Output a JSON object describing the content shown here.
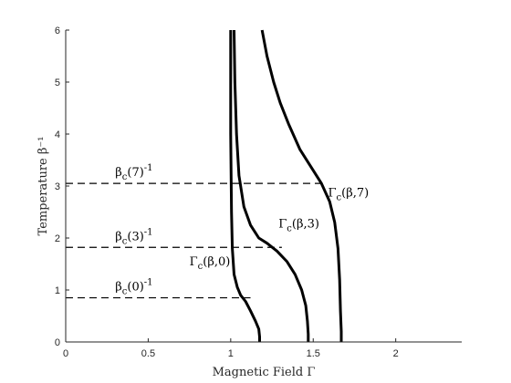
{
  "chart_data": {
    "type": "line",
    "title": "",
    "xlabel": "Magnetic Field Γ",
    "ylabel": "Temperature β⁻¹",
    "xlim": [
      0,
      2.4
    ],
    "ylim": [
      0,
      6
    ],
    "xticks": [
      0,
      0.5,
      1,
      1.5,
      2
    ],
    "xtick_labels": [
      "0",
      "0.5",
      "1",
      "1.5",
      "2"
    ],
    "yticks": [
      0,
      1,
      2,
      3,
      4,
      5,
      6
    ],
    "ytick_labels": [
      "0",
      "1",
      "2",
      "3",
      "4",
      "5",
      "6"
    ],
    "grid": false,
    "colors": {
      "curve": "#000000",
      "axis": "#262626"
    },
    "series": [
      {
        "x": [
          1.0,
          1.0,
          1.005,
          1.01,
          1.02,
          1.04,
          1.06,
          1.09,
          1.12,
          1.15,
          1.17,
          1.175,
          1.175
        ],
        "y": [
          6.0,
          4.0,
          2.5,
          1.8,
          1.3,
          1.05,
          0.9,
          0.78,
          0.6,
          0.4,
          0.25,
          0.1,
          0.0
        ]
      },
      {
        "x": [
          1.02,
          1.025,
          1.035,
          1.05,
          1.08,
          1.12,
          1.17,
          1.22,
          1.28,
          1.34,
          1.39,
          1.43,
          1.455,
          1.465,
          1.47,
          1.47
        ],
        "y": [
          6.0,
          5.0,
          4.0,
          3.2,
          2.6,
          2.25,
          2.0,
          1.9,
          1.75,
          1.55,
          1.3,
          1.0,
          0.7,
          0.4,
          0.15,
          0.0
        ]
      },
      {
        "x": [
          1.19,
          1.22,
          1.26,
          1.3,
          1.35,
          1.42,
          1.5,
          1.55,
          1.6,
          1.63,
          1.65,
          1.66,
          1.665,
          1.67,
          1.67
        ],
        "y": [
          6.0,
          5.5,
          5.0,
          4.6,
          4.2,
          3.7,
          3.3,
          3.05,
          2.7,
          2.3,
          1.8,
          1.2,
          0.6,
          0.2,
          0.0
        ]
      }
    ],
    "thresholds": [
      {
        "label": "βc(7)⁻¹",
        "label_base": "β",
        "label_sub": "c",
        "label_arg": "(7)",
        "label_sup": "-1",
        "y": 3.05,
        "x_end": 1.55
      },
      {
        "label": "βc(3)⁻¹",
        "label_base": "β",
        "label_sub": "c",
        "label_arg": "(3)",
        "label_sup": "-1",
        "y": 1.82,
        "x_end": 1.31
      },
      {
        "label": "βc(0)⁻¹",
        "label_base": "β",
        "label_sub": "c",
        "label_arg": "(0)",
        "label_sup": "-1",
        "y": 0.85,
        "x_end": 1.12
      }
    ],
    "curve_labels": [
      {
        "label": "Γc(β,7)",
        "base": "Γ",
        "sub": "c",
        "arg": "(β,7)",
        "x": 1.59,
        "y": 2.8
      },
      {
        "label": "Γc(β,3)",
        "base": "Γ",
        "sub": "c",
        "arg": "(β,3)",
        "x": 1.29,
        "y": 2.2
      },
      {
        "label": "Γc(β,0)",
        "base": "Γ",
        "sub": "c",
        "arg": "(β,0)",
        "x": 0.75,
        "y": 1.47
      }
    ]
  }
}
